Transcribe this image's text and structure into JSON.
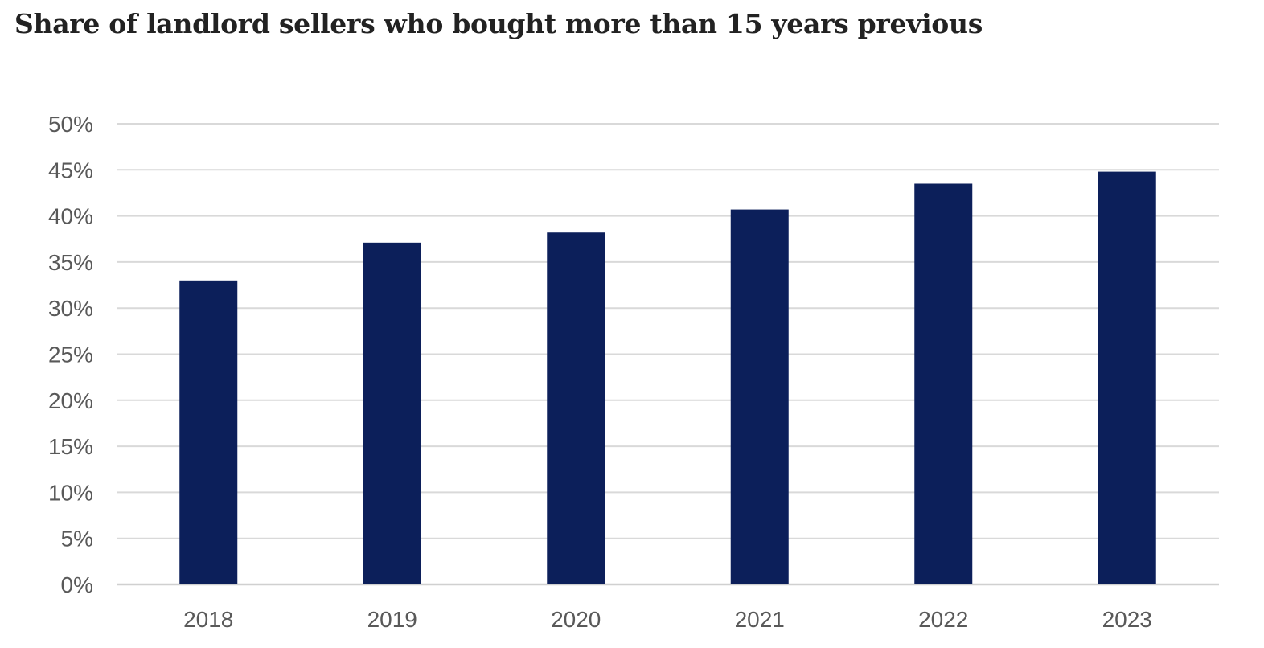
{
  "chart_data": {
    "type": "bar",
    "title": "Share of landlord sellers who bought more than 15 years previous",
    "categories": [
      "2018",
      "2019",
      "2020",
      "2021",
      "2022",
      "2023"
    ],
    "values": [
      33,
      37.1,
      38.2,
      40.7,
      43.5,
      44.8
    ],
    "xlabel": "",
    "ylabel": "",
    "ylim": [
      0,
      50
    ],
    "yticks": [
      "0%",
      "5%",
      "10%",
      "15%",
      "20%",
      "25%",
      "30%",
      "35%",
      "40%",
      "45%",
      "50%"
    ],
    "grid": true,
    "legend": "none",
    "bar_color": "#0c1f5a",
    "grid_color": "#d9d9d9",
    "axis_color": "#d0d0d0"
  }
}
